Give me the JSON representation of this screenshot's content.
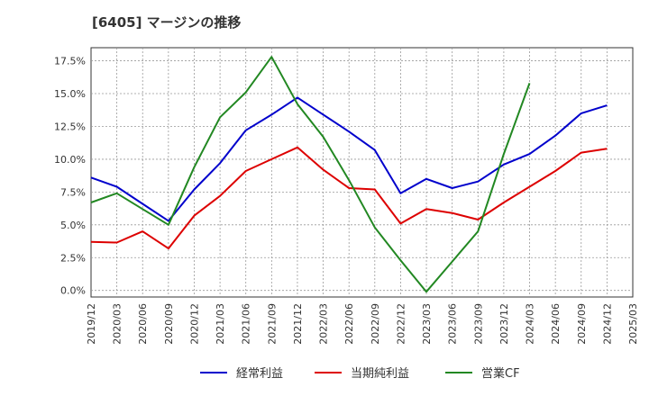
{
  "chart_data": {
    "type": "line",
    "title": "[6405]  マージンの推移",
    "x": [
      "2019/12",
      "2020/03",
      "2020/06",
      "2020/09",
      "2020/12",
      "2021/03",
      "2021/06",
      "2021/09",
      "2021/12",
      "2022/03",
      "2022/06",
      "2022/09",
      "2022/12",
      "2023/03",
      "2023/06",
      "2023/09",
      "2023/12",
      "2024/03",
      "2024/06",
      "2024/09",
      "2024/12",
      "2025/03"
    ],
    "ylim": [
      -0.5,
      18.5
    ],
    "yticks": [
      0,
      2.5,
      5,
      7.5,
      10,
      12.5,
      15,
      17.5
    ],
    "ytick_labels": [
      "0.0%",
      "2.5%",
      "5.0%",
      "7.5%",
      "10.0%",
      "12.5%",
      "15.0%",
      "17.5%"
    ],
    "grid": true,
    "legend_position": "bottom",
    "series": [
      {
        "name": "経常利益",
        "color": "#0000cc",
        "values": [
          8.6,
          7.9,
          6.6,
          5.3,
          7.7,
          9.7,
          12.2,
          13.4,
          14.7,
          13.4,
          12.1,
          10.7,
          7.4,
          8.5,
          7.8,
          8.3,
          9.6,
          10.4,
          11.8,
          13.5,
          14.1,
          null
        ]
      },
      {
        "name": "当期純利益",
        "color": "#dd0000",
        "values": [
          3.7,
          3.65,
          4.5,
          3.2,
          5.7,
          7.2,
          9.1,
          10.0,
          10.9,
          9.2,
          7.8,
          7.7,
          5.1,
          6.2,
          5.9,
          5.4,
          6.7,
          7.9,
          9.1,
          10.5,
          10.8,
          null
        ]
      },
      {
        "name": "営業CF",
        "color": "#228822",
        "values": [
          6.7,
          7.4,
          6.2,
          5.0,
          9.4,
          13.2,
          15.1,
          17.8,
          14.2,
          11.7,
          8.4,
          4.8,
          2.3,
          -0.1,
          2.2,
          4.5,
          10.4,
          15.8,
          null,
          null,
          null,
          null
        ]
      }
    ]
  }
}
